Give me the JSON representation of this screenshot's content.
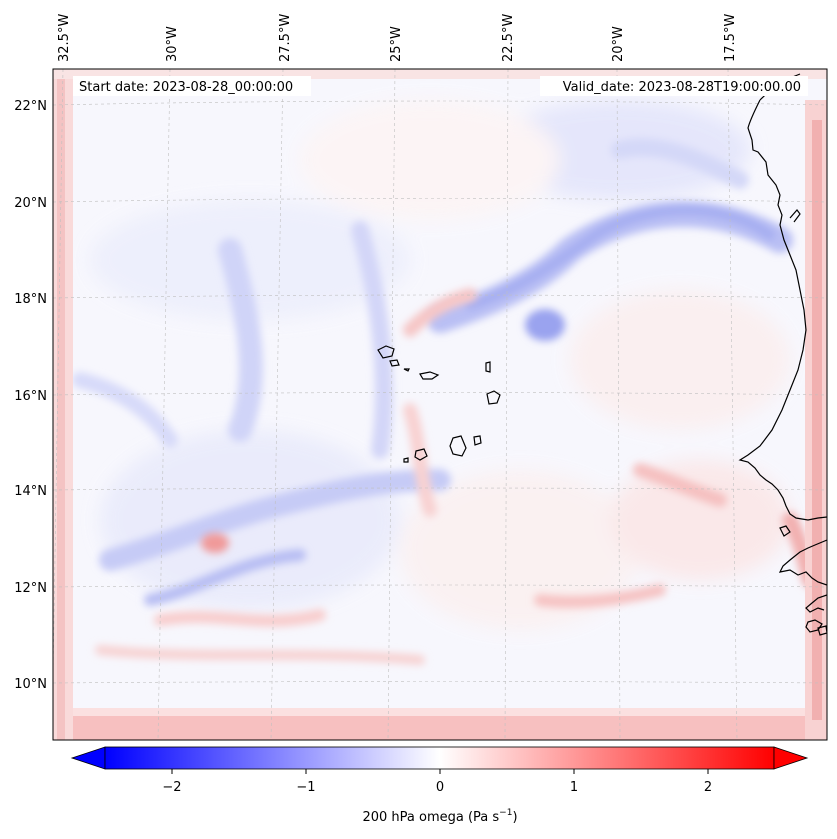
{
  "map": {
    "start_date": "Start date: 2023-08-28_00:00:00",
    "valid_date": "Valid_date: 2023-08-28T19:00:00.00",
    "lon_labels": [
      "32.5°W",
      "30°W",
      "27.5°W",
      "25°W",
      "22.5°W",
      "20°W",
      "17.5°W"
    ],
    "lat_labels": [
      "22°N",
      "20°N",
      "18°N",
      "16°N",
      "14°N",
      "12°N",
      "10°N"
    ],
    "field": "200 hPa omega",
    "colormap": "bwr",
    "coastline_color": "#000000",
    "gridline_style": "dashed light grey"
  },
  "colorbar": {
    "label_main": "200 hPa omega (Pa s",
    "label_exp": "−1",
    "label_close": ")",
    "ticks": [
      "−2",
      "−1",
      "0",
      "1",
      "2"
    ],
    "tick_values": [
      -2,
      -1,
      0,
      1,
      2
    ],
    "vmin": -2.5,
    "vmax": 2.5,
    "extend": "both",
    "min_color": "#0000ff",
    "mid_color": "#ffffff",
    "max_color": "#ff0000"
  }
}
